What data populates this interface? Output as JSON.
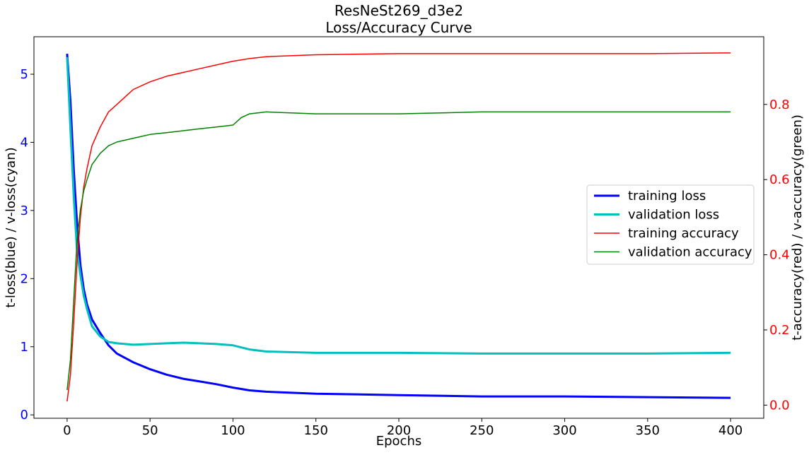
{
  "chart_data": {
    "type": "line",
    "title": "ResNeSt269_d3e2",
    "subtitle": "Loss/Accuracy Curve",
    "xlabel": "Epochs",
    "ylabel_left": "t-loss(blue) / v-loss(cyan)",
    "ylabel_right": "t-accuracy(red) / v-accuracy(green)",
    "xlim": [
      -20,
      420
    ],
    "ylim_left": [
      -0.05,
      5.55
    ],
    "ylim_right": [
      -0.035,
      0.98
    ],
    "x_ticks": [
      0,
      50,
      100,
      150,
      200,
      250,
      300,
      350,
      400
    ],
    "y_ticks_left": [
      0,
      1,
      2,
      3,
      4,
      5
    ],
    "y_ticks_right": [
      0.0,
      0.2,
      0.4,
      0.6,
      0.8
    ],
    "y_tick_labels_right": [
      "0.0",
      "0.2",
      "0.4",
      "0.6",
      "0.8"
    ],
    "legend_position": "center-right",
    "colors": {
      "training_loss": "#0000ff",
      "validation_loss": "#00bfbf",
      "training_accuracy": "#ff0000",
      "validation_accuracy": "#008000",
      "left_axis": "#0000ff",
      "right_axis": "#ff0000"
    },
    "series": [
      {
        "name": "training loss",
        "axis": "left",
        "color": "#0000ff",
        "x": [
          0,
          2,
          4,
          6,
          8,
          10,
          12,
          15,
          20,
          25,
          30,
          40,
          50,
          60,
          70,
          80,
          90,
          100,
          110,
          120,
          150,
          200,
          250,
          300,
          350,
          400
        ],
        "y": [
          5.3,
          4.6,
          3.6,
          2.8,
          2.2,
          1.85,
          1.62,
          1.4,
          1.2,
          1.02,
          0.9,
          0.77,
          0.67,
          0.59,
          0.53,
          0.49,
          0.45,
          0.4,
          0.36,
          0.34,
          0.31,
          0.29,
          0.27,
          0.27,
          0.26,
          0.25
        ]
      },
      {
        "name": "validation loss",
        "axis": "left",
        "color": "#00bfbf",
        "x": [
          0,
          2,
          4,
          6,
          8,
          10,
          12,
          15,
          20,
          25,
          30,
          40,
          50,
          60,
          70,
          80,
          90,
          100,
          110,
          120,
          150,
          200,
          250,
          300,
          350,
          400
        ],
        "y": [
          5.25,
          4.2,
          3.2,
          2.4,
          2.05,
          1.75,
          1.55,
          1.3,
          1.15,
          1.07,
          1.05,
          1.03,
          1.04,
          1.05,
          1.06,
          1.05,
          1.04,
          1.02,
          0.96,
          0.93,
          0.91,
          0.91,
          0.9,
          0.9,
          0.9,
          0.91
        ]
      },
      {
        "name": "training accuracy",
        "axis": "right",
        "color": "#ff0000",
        "x": [
          0,
          2,
          4,
          6,
          8,
          10,
          12,
          15,
          20,
          25,
          30,
          35,
          40,
          50,
          60,
          70,
          80,
          90,
          100,
          110,
          120,
          150,
          200,
          250,
          300,
          350,
          400
        ],
        "y": [
          0.01,
          0.08,
          0.22,
          0.38,
          0.5,
          0.58,
          0.63,
          0.69,
          0.74,
          0.78,
          0.8,
          0.82,
          0.84,
          0.86,
          0.875,
          0.885,
          0.895,
          0.905,
          0.915,
          0.922,
          0.927,
          0.932,
          0.935,
          0.935,
          0.935,
          0.935,
          0.937
        ]
      },
      {
        "name": "validation accuracy",
        "axis": "right",
        "color": "#008000",
        "x": [
          0,
          2,
          4,
          6,
          8,
          10,
          12,
          15,
          20,
          25,
          30,
          40,
          50,
          60,
          70,
          80,
          90,
          100,
          105,
          110,
          120,
          150,
          200,
          250,
          300,
          350,
          400
        ],
        "y": [
          0.04,
          0.12,
          0.28,
          0.44,
          0.52,
          0.57,
          0.6,
          0.64,
          0.67,
          0.69,
          0.7,
          0.71,
          0.72,
          0.725,
          0.73,
          0.735,
          0.74,
          0.745,
          0.765,
          0.775,
          0.78,
          0.775,
          0.775,
          0.78,
          0.78,
          0.78,
          0.78
        ]
      }
    ]
  }
}
